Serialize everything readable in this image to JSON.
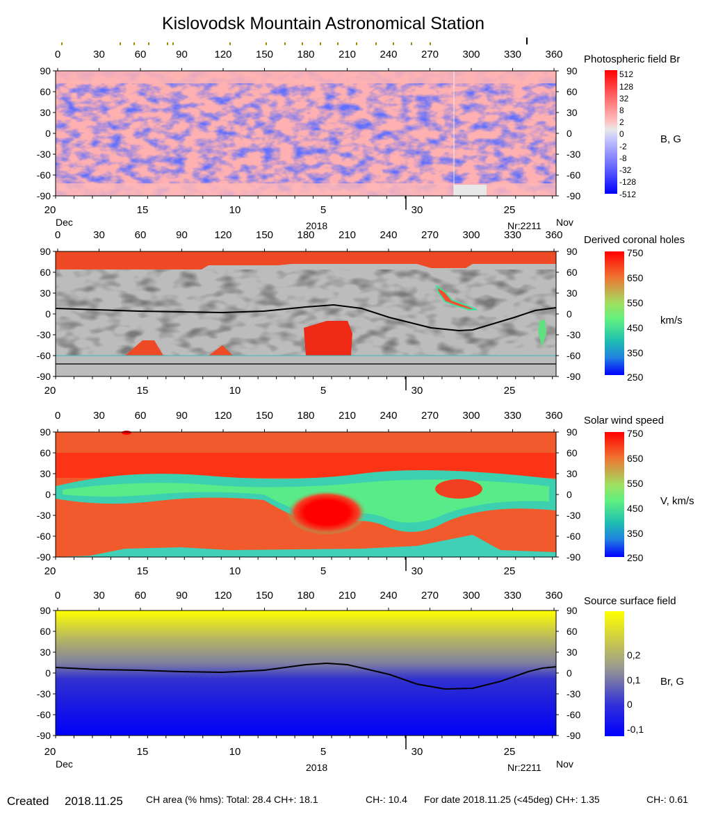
{
  "title": "Kislovodsk Mountain Astronomical Station",
  "x_ticks": [
    "0",
    "30",
    "60",
    "90",
    "120",
    "150",
    "180",
    "210",
    "240",
    "270",
    "300",
    "330",
    "360"
  ],
  "y_ticks": [
    "90",
    "60",
    "30",
    "0",
    "-30",
    "-60",
    "-90"
  ],
  "date_ticks": [
    "20",
    "15",
    "10",
    "5",
    "30",
    "25"
  ],
  "panel1_dates": {
    "left": "Dec",
    "center": "2018",
    "rot": "Nr:2211",
    "right": "Nov"
  },
  "panel4_dates": {
    "left": "Dec",
    "center": "2018",
    "rot": "Nr:2211",
    "right": "Nov"
  },
  "chart_data": [
    {
      "type": "heatmap",
      "title": "Photospheric field Br",
      "colorbar_label": "B, G",
      "colorbar_ticks": [
        "512",
        "128",
        "32",
        "8",
        "2",
        "0",
        "-2",
        "-8",
        "-32",
        "-128",
        "-512"
      ],
      "colorscale": [
        "#ff0000",
        "#ff6060",
        "#ff9c9c",
        "#ffc4c4",
        "#e8e8e8",
        "#c4c4ff",
        "#9c9cff",
        "#6060ff",
        "#0000ff"
      ],
      "xlim": [
        0,
        360
      ],
      "ylim": [
        -90,
        90
      ]
    },
    {
      "type": "heatmap",
      "title": "Derived coronal holes",
      "colorbar_label": "km/s",
      "colorbar_ticks": [
        "750",
        "650",
        "550",
        "450",
        "350",
        "250"
      ],
      "colorscale": [
        "#ff0000",
        "#f08040",
        "#70ff70",
        "#20c0c0",
        "#0000ff"
      ],
      "xlim": [
        0,
        360
      ],
      "ylim": [
        -90,
        90
      ],
      "neutral_line": [
        [
          0,
          8
        ],
        [
          30,
          6
        ],
        [
          60,
          4
        ],
        [
          90,
          3
        ],
        [
          120,
          2
        ],
        [
          150,
          4
        ],
        [
          180,
          10
        ],
        [
          200,
          13
        ],
        [
          220,
          8
        ],
        [
          240,
          -5
        ],
        [
          270,
          -20
        ],
        [
          290,
          -24
        ],
        [
          300,
          -23
        ],
        [
          330,
          -5
        ],
        [
          345,
          5
        ],
        [
          360,
          9
        ]
      ]
    },
    {
      "type": "heatmap",
      "title": "Solar wind speed",
      "colorbar_label": "V, km/s",
      "colorbar_ticks": [
        "750",
        "650",
        "550",
        "450",
        "350",
        "250"
      ],
      "colorscale": [
        "#ff0000",
        "#f08040",
        "#70ff70",
        "#20c0c0",
        "#0000ff"
      ],
      "xlim": [
        0,
        360
      ],
      "ylim": [
        -90,
        90
      ]
    },
    {
      "type": "heatmap",
      "title": "Source surface field",
      "colorbar_label": "Br, G",
      "colorbar_ticks": [
        "0,2",
        "0,1",
        "0",
        "-0,1"
      ],
      "colorscale": [
        "#ffff00",
        "#9898a0",
        "#2020f0",
        "#0000ff"
      ],
      "xlim": [
        0,
        360
      ],
      "ylim": [
        -90,
        90
      ],
      "neutral_line": [
        [
          0,
          8
        ],
        [
          30,
          5
        ],
        [
          60,
          4
        ],
        [
          90,
          2
        ],
        [
          120,
          1
        ],
        [
          150,
          4
        ],
        [
          180,
          12
        ],
        [
          195,
          14
        ],
        [
          210,
          12
        ],
        [
          240,
          -2
        ],
        [
          260,
          -16
        ],
        [
          280,
          -23
        ],
        [
          300,
          -22
        ],
        [
          320,
          -12
        ],
        [
          340,
          2
        ],
        [
          350,
          7
        ],
        [
          360,
          9
        ]
      ]
    }
  ],
  "footer": {
    "created_label": "Created",
    "created_date": "2018.11.25",
    "ch_area": "CH area (% hms): Total: 28.4 CH+: 18.1",
    "ch_minus": "CH-: 10.4",
    "for_date": "For date 2018.11.25 (<45deg) CH+: 1.35",
    "ch_minus2": "CH-: 0.61"
  }
}
